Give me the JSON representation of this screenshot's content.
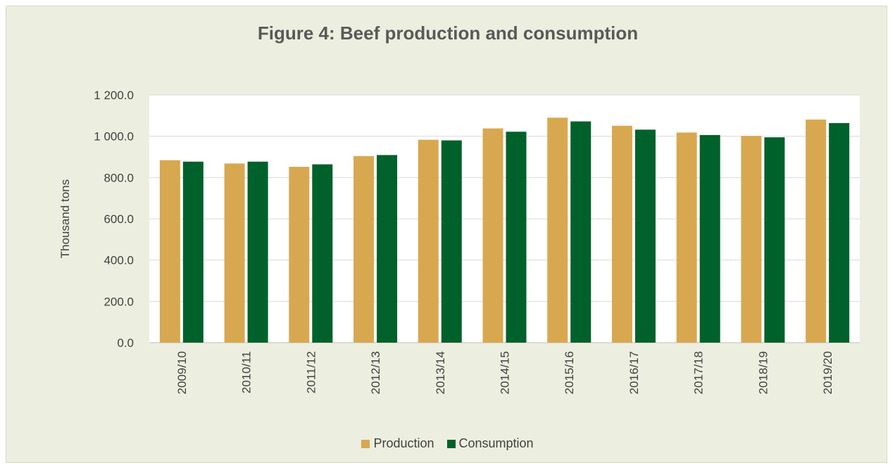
{
  "chart_data": {
    "type": "bar",
    "title": "Figure 4: Beef production and consumption",
    "ylabel": "Thousand tons",
    "xlabel": "",
    "ylim": [
      0,
      1200
    ],
    "yticks": [
      "0.0",
      "200.0",
      "400.0",
      "600.0",
      "800.0",
      "1 000.0",
      "1 200.0"
    ],
    "categories": [
      "2009/10",
      "2010/11",
      "2011/12",
      "2012/13",
      "2013/14",
      "2014/15",
      "2015/16",
      "2016/17",
      "2017/18",
      "2018/19",
      "2019/20"
    ],
    "series": [
      {
        "name": "Production",
        "color": "#d8a850",
        "values": [
          884,
          868,
          852,
          904,
          983,
          1038,
          1090,
          1051,
          1018,
          1002,
          1081
        ]
      },
      {
        "name": "Consumption",
        "color": "#00612b",
        "values": [
          877,
          877,
          864,
          909,
          980,
          1022,
          1072,
          1032,
          1006,
          995,
          1064
        ]
      }
    ],
    "grid": true,
    "legend_position": "bottom"
  }
}
